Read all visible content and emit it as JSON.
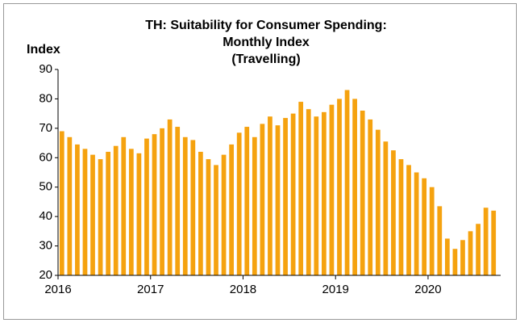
{
  "chart_data": {
    "type": "bar",
    "title": [
      "TH: Suitability for Consumer Spending:",
      "Monthly Index",
      "(Travelling)"
    ],
    "ylabel": "Index",
    "categories": [
      "2016",
      null,
      null,
      null,
      null,
      null,
      null,
      null,
      null,
      null,
      null,
      null,
      "2017",
      null,
      null,
      null,
      null,
      null,
      null,
      null,
      null,
      null,
      null,
      null,
      "2018",
      null,
      null,
      null,
      null,
      null,
      null,
      null,
      null,
      null,
      null,
      null,
      "2019",
      null,
      null,
      null,
      null,
      null,
      null,
      null,
      null,
      null,
      null,
      null,
      "2020",
      null,
      null,
      null,
      null,
      null,
      null,
      null,
      null
    ],
    "values": [
      69,
      67,
      64.5,
      63,
      61,
      59.5,
      62,
      64,
      67,
      63,
      61.5,
      66.5,
      68,
      70,
      73,
      70.5,
      67,
      66,
      62,
      59.5,
      57.5,
      61,
      64.5,
      68.5,
      70.5,
      67,
      71.5,
      74,
      71,
      73.5,
      75,
      79,
      76.5,
      74,
      75.5,
      78,
      80,
      83,
      80,
      76,
      73,
      69.5,
      65.5,
      62.5,
      59.5,
      57.5,
      55,
      53,
      50,
      43.5,
      32.5,
      29,
      32,
      35,
      37.5,
      43,
      42
    ],
    "color": "#f5a20f",
    "ylim": [
      20,
      90
    ],
    "yticks": [
      20,
      30,
      40,
      50,
      60,
      70,
      80,
      90
    ],
    "grid": false
  }
}
